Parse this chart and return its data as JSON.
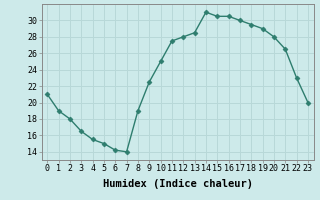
{
  "xlabel": "Humidex (Indice chaleur)",
  "x_values": [
    0,
    1,
    2,
    3,
    4,
    5,
    6,
    7,
    8,
    9,
    10,
    11,
    12,
    13,
    14,
    15,
    16,
    17,
    18,
    19,
    20,
    21,
    22,
    23
  ],
  "y_values": [
    21,
    19,
    18,
    16.5,
    15.5,
    15,
    14.2,
    14,
    19,
    22.5,
    25,
    27.5,
    28,
    28.5,
    31,
    30.5,
    30.5,
    30,
    29.5,
    29,
    28,
    26.5,
    23,
    20
  ],
  "line_color": "#2e7d6e",
  "marker": "D",
  "marker_size": 2.5,
  "bg_color": "#cdeaea",
  "grid_color": "#b8d8d8",
  "ylim": [
    13,
    32
  ],
  "yticks": [
    14,
    16,
    18,
    20,
    22,
    24,
    26,
    28,
    30
  ],
  "xlim": [
    -0.5,
    23.5
  ],
  "xticks": [
    0,
    1,
    2,
    3,
    4,
    5,
    6,
    7,
    8,
    9,
    10,
    11,
    12,
    13,
    14,
    15,
    16,
    17,
    18,
    19,
    20,
    21,
    22,
    23
  ],
  "tick_fontsize": 6,
  "xlabel_fontsize": 7.5,
  "linewidth": 1.0
}
